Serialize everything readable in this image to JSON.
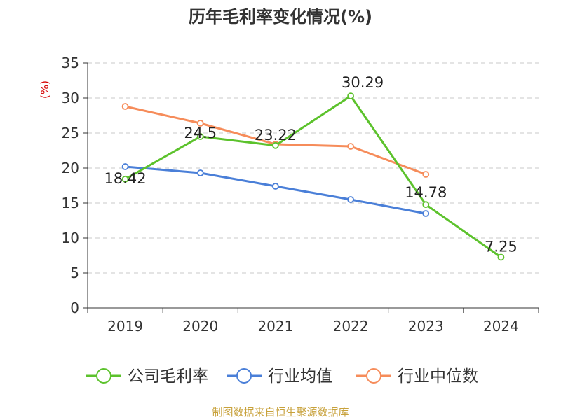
{
  "chart_data": {
    "type": "line",
    "title": "历年毛利率变化情况(%)",
    "ylabel": "(%)",
    "xlabel": "",
    "categories": [
      "2019",
      "2020",
      "2021",
      "2022",
      "2023",
      "2024"
    ],
    "ylim": [
      0,
      35
    ],
    "yticks": [
      0,
      5,
      10,
      15,
      20,
      25,
      30,
      35
    ],
    "grid": true,
    "legend_position": "bottom",
    "series": [
      {
        "name": "公司毛利率",
        "color": "#5cc22c",
        "values": [
          18.42,
          24.5,
          23.22,
          30.29,
          14.78,
          7.25
        ],
        "labels": [
          "18.42",
          "24.5",
          "23.22",
          "30.29",
          "14.78",
          "7.25"
        ]
      },
      {
        "name": "行业均值",
        "color": "#4a7fd8",
        "values": [
          20.2,
          19.3,
          17.4,
          15.5,
          13.5,
          null
        ]
      },
      {
        "name": "行业中位数",
        "color": "#f68c5a",
        "values": [
          28.8,
          26.4,
          23.4,
          23.1,
          19.1,
          null
        ]
      }
    ],
    "source": "制图数据来自恒生聚源数据库"
  }
}
